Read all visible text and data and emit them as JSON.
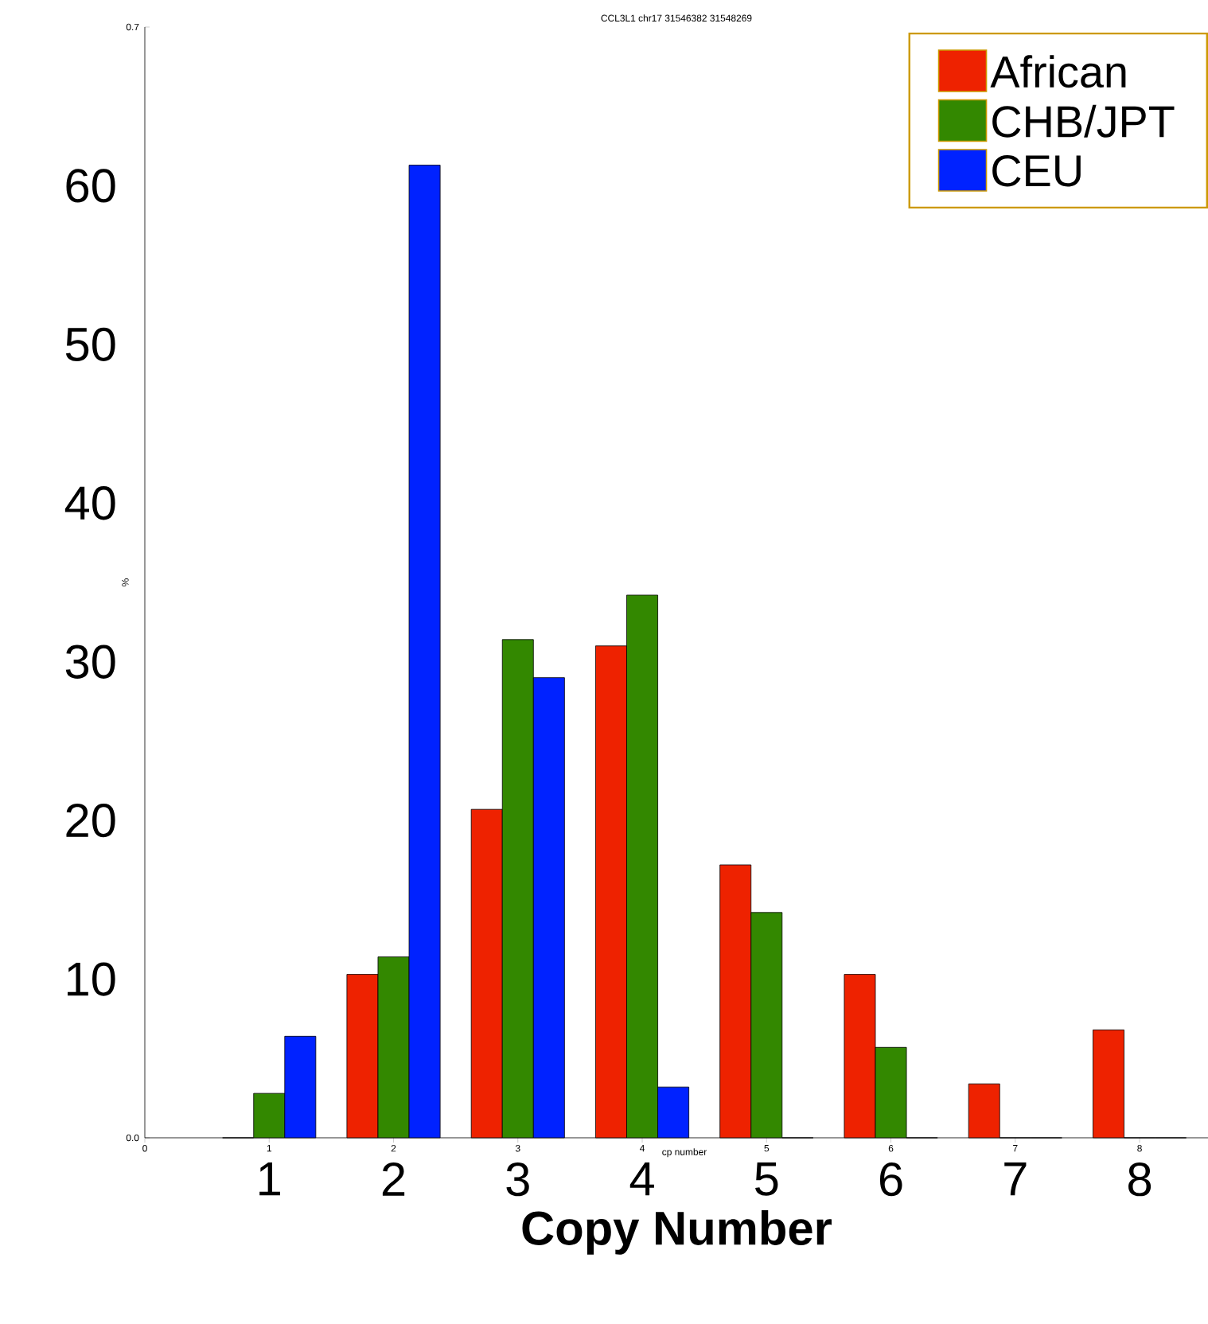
{
  "chart_data": {
    "type": "bar",
    "title": "CCL3L1 chr17 31546382 31548269",
    "xlabel": "cp number",
    "ylabel": "%",
    "x2label": "Copy Number",
    "x": [
      1,
      2,
      3,
      4,
      5,
      6,
      7,
      8
    ],
    "series": [
      {
        "name": "African",
        "color": "#ee2200",
        "values": [
          0,
          0.103,
          0.207,
          0.31,
          0.172,
          0.103,
          0.034,
          0.068
        ]
      },
      {
        "name": "CHB/JPT",
        "color": "#338800",
        "values": [
          0.028,
          0.114,
          0.314,
          0.342,
          0.142,
          0.057,
          0,
          0
        ]
      },
      {
        "name": "CEU",
        "color": "#0022ff",
        "values": [
          0.064,
          0.613,
          0.29,
          0.032,
          0,
          0,
          0,
          0
        ]
      }
    ],
    "xlim": [
      0,
      8.55
    ],
    "ylim": [
      0,
      0.7
    ],
    "xticks": [
      0,
      1,
      2,
      3,
      4,
      5,
      6,
      7,
      8
    ],
    "yticks": [
      {
        "value": 0,
        "label": "0.0"
      },
      0.7
    ],
    "x2lim": [
      0,
      8.55
    ],
    "x2ticks": [
      1,
      2,
      3,
      4,
      5,
      6,
      7,
      8
    ],
    "y2lim": [
      0,
      70
    ],
    "y2ticks": [
      10,
      20,
      30,
      40,
      50,
      60
    ],
    "legend": "top right",
    "grid": false
  }
}
